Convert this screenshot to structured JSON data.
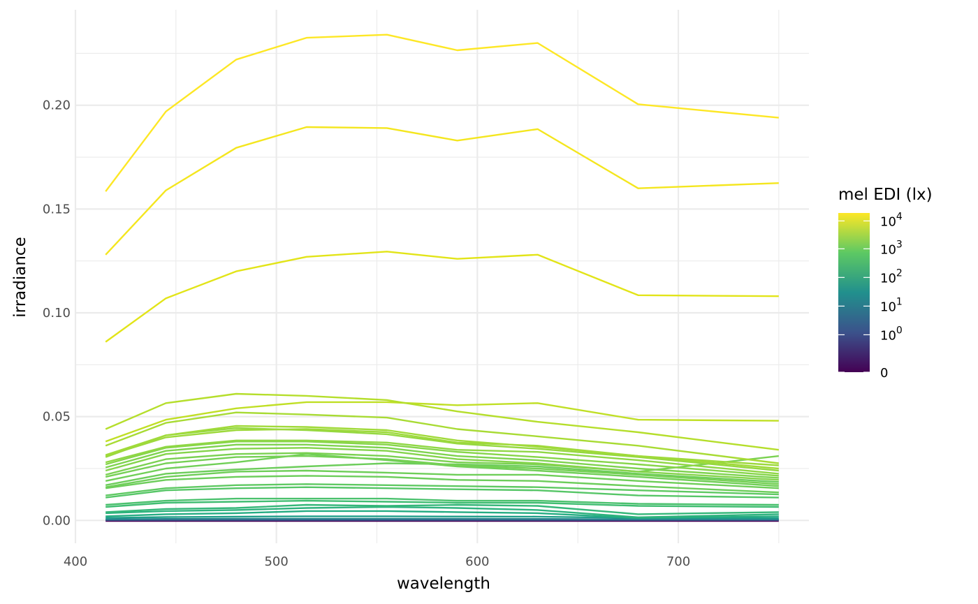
{
  "chart_data": {
    "type": "line",
    "xlabel": "wavelength",
    "ylabel": "irradiance",
    "xlim": [
      400,
      765
    ],
    "ylim": [
      -0.011,
      0.246
    ],
    "x_ticks": [
      400,
      500,
      600,
      700
    ],
    "x_tick_labels": [
      "400",
      "500",
      "600",
      "700"
    ],
    "y_ticks": [
      0,
      0.05,
      0.1,
      0.15,
      0.2
    ],
    "y_tick_labels": [
      "0.00",
      "0.05",
      "0.10",
      "0.15",
      "0.20"
    ],
    "grid": true,
    "x": [
      415,
      445,
      480,
      515,
      555,
      590,
      630,
      680,
      750
    ],
    "series": [
      {
        "values": [
          0.1585,
          0.197,
          0.222,
          0.2325,
          0.234,
          0.2265,
          0.23,
          0.2005,
          0.194
        ],
        "color": "#fde725"
      },
      {
        "values": [
          0.128,
          0.159,
          0.1795,
          0.1895,
          0.189,
          0.183,
          0.1885,
          0.16,
          0.1625
        ],
        "color": "#f4e61e"
      },
      {
        "values": [
          0.086,
          0.107,
          0.12,
          0.127,
          0.1295,
          0.126,
          0.128,
          0.1085,
          0.108
        ],
        "color": "#e2e418"
      },
      {
        "values": [
          0.044,
          0.0565,
          0.061,
          0.06,
          0.058,
          0.0525,
          0.0475,
          0.0425,
          0.034
        ],
        "color": "#b5de2b"
      },
      {
        "values": [
          0.038,
          0.0485,
          0.054,
          0.057,
          0.057,
          0.0555,
          0.0565,
          0.0485,
          0.048
        ],
        "color": "#c0df25"
      },
      {
        "values": [
          0.036,
          0.047,
          0.052,
          0.051,
          0.0495,
          0.044,
          0.0405,
          0.036,
          0.0275
        ],
        "color": "#a8db34"
      },
      {
        "values": [
          0.0315,
          0.041,
          0.0455,
          0.045,
          0.0435,
          0.0385,
          0.0355,
          0.031,
          0.025
        ],
        "color": "#a0da39"
      },
      {
        "values": [
          0.031,
          0.04,
          0.0435,
          0.044,
          0.0425,
          0.0375,
          0.036,
          0.031,
          0.0265
        ],
        "color": "#9dd93b"
      },
      {
        "values": [
          0.0305,
          0.041,
          0.0445,
          0.0435,
          0.0415,
          0.037,
          0.0345,
          0.0305,
          0.024
        ],
        "color": "#95d840"
      },
      {
        "values": [
          0.028,
          0.0355,
          0.0385,
          0.0385,
          0.0375,
          0.034,
          0.033,
          0.029,
          0.0225
        ],
        "color": "#8fd744"
      },
      {
        "values": [
          0.027,
          0.035,
          0.038,
          0.038,
          0.0365,
          0.033,
          0.0305,
          0.027,
          0.0215
        ],
        "color": "#86d549"
      },
      {
        "values": [
          0.0255,
          0.0335,
          0.0365,
          0.0365,
          0.035,
          0.031,
          0.029,
          0.025,
          0.0205
        ],
        "color": "#7ed34f"
      },
      {
        "values": [
          0.024,
          0.032,
          0.0345,
          0.035,
          0.0335,
          0.0295,
          0.0275,
          0.0235,
          0.0195
        ],
        "color": "#84d44b"
      },
      {
        "values": [
          0.022,
          0.0295,
          0.032,
          0.0325,
          0.031,
          0.028,
          0.027,
          0.0235,
          0.031
        ],
        "color": "#7ad151"
      },
      {
        "values": [
          0.021,
          0.0275,
          0.0305,
          0.031,
          0.0295,
          0.0265,
          0.025,
          0.022,
          0.0175
        ],
        "color": "#75d054"
      },
      {
        "values": [
          0.019,
          0.025,
          0.028,
          0.032,
          0.029,
          0.026,
          0.024,
          0.021,
          0.0165
        ],
        "color": "#70cf57"
      },
      {
        "values": [
          0.017,
          0.0225,
          0.0245,
          0.026,
          0.0275,
          0.027,
          0.026,
          0.0225,
          0.0185
        ],
        "color": "#6ccd5a"
      },
      {
        "values": [
          0.016,
          0.021,
          0.0235,
          0.024,
          0.023,
          0.022,
          0.022,
          0.019,
          0.0155
        ],
        "color": "#6ece58"
      },
      {
        "values": [
          0.0155,
          0.0195,
          0.021,
          0.0215,
          0.021,
          0.0195,
          0.019,
          0.0165,
          0.0135
        ],
        "color": "#6ccd5a"
      },
      {
        "values": [
          0.012,
          0.0155,
          0.017,
          0.0175,
          0.017,
          0.0165,
          0.016,
          0.0145,
          0.0125
        ],
        "color": "#5ec962"
      },
      {
        "values": [
          0.011,
          0.0145,
          0.0155,
          0.016,
          0.0155,
          0.015,
          0.0145,
          0.012,
          0.011
        ],
        "color": "#56c667"
      },
      {
        "values": [
          0.0075,
          0.0095,
          0.0105,
          0.0105,
          0.0105,
          0.0095,
          0.0095,
          0.008,
          0.0075
        ],
        "color": "#4ac16d"
      },
      {
        "values": [
          0.0065,
          0.0085,
          0.009,
          0.0095,
          0.009,
          0.0085,
          0.0085,
          0.007,
          0.0065
        ],
        "color": "#40bd72"
      },
      {
        "values": [
          0.004,
          0.0055,
          0.006,
          0.0075,
          0.007,
          0.0075,
          0.007,
          0.003,
          0.004
        ],
        "color": "#35b779"
      },
      {
        "values": [
          0.0035,
          0.0045,
          0.005,
          0.006,
          0.0065,
          0.006,
          0.005,
          0.0015,
          0.003
        ],
        "color": "#2db27d"
      },
      {
        "values": [
          0.002,
          0.003,
          0.0035,
          0.0045,
          0.0045,
          0.004,
          0.0035,
          0.0012,
          0.002
        ],
        "color": "#25ac82"
      },
      {
        "values": [
          0.0012,
          0.0016,
          0.0018,
          0.002,
          0.002,
          0.0019,
          0.0018,
          0.0012,
          0.0011
        ],
        "color": "#1f9e89"
      },
      {
        "values": [
          0.0005,
          0.0007,
          0.0008,
          0.0008,
          0.0008,
          0.0008,
          0.0007,
          0.0005,
          0.0005
        ],
        "color": "#26828e"
      },
      {
        "values": [
          0.0002,
          0.0002,
          0.0002,
          0.0002,
          0.0002,
          0.0002,
          0.0002,
          0.0002,
          0.0002
        ],
        "color": "#3b528b"
      },
      {
        "values": [
          0,
          0,
          0,
          0,
          0,
          0,
          0,
          0,
          0
        ],
        "color": "#440154"
      }
    ],
    "legend": {
      "title": "mel EDI (lx)",
      "placement": "right",
      "type": "colorbar",
      "scale": "log",
      "labels": [
        {
          "base": "10",
          "exp": "4",
          "frac": 0.95
        },
        {
          "base": "10",
          "exp": "3",
          "frac": 0.775
        },
        {
          "base": "10",
          "exp": "2",
          "frac": 0.595
        },
        {
          "base": "10",
          "exp": "1",
          "frac": 0.415
        },
        {
          "base": "10",
          "exp": "0",
          "frac": 0.235
        },
        {
          "base": "0",
          "exp": "",
          "frac": 0.0
        }
      ],
      "colors": [
        "#440154",
        "#3b528b",
        "#21908d",
        "#5dc963",
        "#fde725"
      ]
    }
  }
}
